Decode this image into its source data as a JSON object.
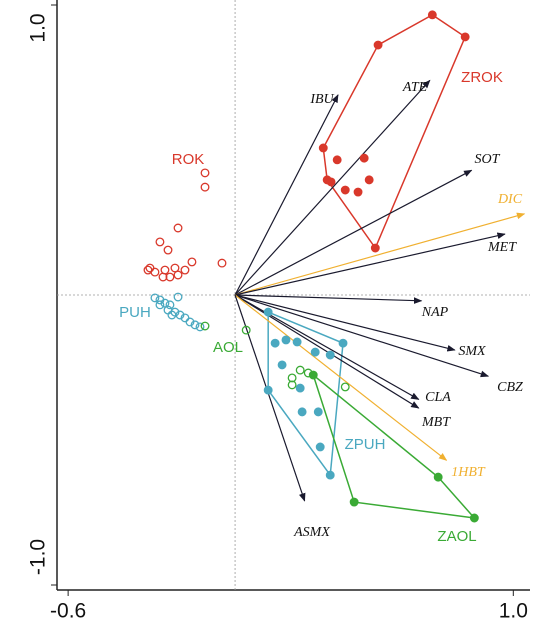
{
  "chart_data": {
    "type": "biplot",
    "xlim": [
      -0.64,
      1.06
    ],
    "ylim": [
      -1.0,
      1.0
    ],
    "xticks": [
      -0.6,
      {
        "value": 1.0,
        "label": "1.0"
      }
    ],
    "yticks": [
      {
        "value": -1.0,
        "label": "-1.0"
      },
      {
        "value": 1.0,
        "label": "1.0"
      }
    ],
    "series": [
      {
        "name": "ROK",
        "color": "#d9382b",
        "filled": false,
        "hull": false,
        "x": [
          -0.108,
          -0.108,
          -0.205,
          -0.27,
          -0.241,
          -0.155,
          -0.047,
          -0.306,
          -0.288,
          -0.252,
          -0.216,
          -0.18,
          -0.259,
          -0.234,
          -0.205,
          -0.313
        ],
        "y": [
          0.421,
          0.372,
          0.231,
          0.183,
          0.155,
          0.114,
          0.11,
          0.093,
          0.079,
          0.086,
          0.093,
          0.086,
          0.062,
          0.062,
          0.069,
          0.086
        ]
      },
      {
        "name": "ZROK",
        "color": "#d9382b",
        "filled": true,
        "hull": true,
        "x": [
          0.709,
          0.827,
          0.514,
          0.317,
          0.367,
          0.464,
          0.331,
          0.345,
          0.396,
          0.442,
          0.482,
          0.504
        ],
        "y": [
          0.966,
          0.89,
          0.862,
          0.507,
          0.466,
          0.472,
          0.397,
          0.39,
          0.362,
          0.355,
          0.397,
          0.162
        ]
      },
      {
        "name": "PUH",
        "color": "#4aa8c0",
        "filled": false,
        "hull": false,
        "x": [
          -0.288,
          -0.27,
          -0.252,
          -0.234,
          -0.205,
          -0.241,
          -0.216,
          -0.198,
          -0.18,
          -0.162,
          -0.144,
          -0.126,
          -0.27,
          -0.227
        ],
        "y": [
          -0.01,
          -0.017,
          -0.028,
          -0.034,
          -0.007,
          -0.052,
          -0.059,
          -0.069,
          -0.079,
          -0.093,
          -0.103,
          -0.11,
          -0.034,
          -0.069
        ]
      },
      {
        "name": "ZPUH",
        "color": "#4aa8c0",
        "filled": true,
        "hull": true,
        "x": [
          0.119,
          0.388,
          0.144,
          0.183,
          0.223,
          0.288,
          0.342,
          0.169,
          0.234,
          0.299,
          0.241,
          0.306,
          0.342,
          0.119
        ],
        "y": [
          -0.059,
          -0.166,
          -0.166,
          -0.155,
          -0.162,
          -0.197,
          -0.207,
          -0.241,
          -0.321,
          -0.403,
          -0.403,
          -0.524,
          -0.621,
          -0.328
        ]
      },
      {
        "name": "AOL",
        "color": "#3aaa35",
        "filled": false,
        "hull": false,
        "x": [
          -0.108,
          0.04,
          0.234,
          0.205,
          0.205,
          0.396,
          0.263
        ],
        "y": [
          -0.107,
          -0.121,
          -0.259,
          -0.286,
          -0.31,
          -0.317,
          -0.269
        ]
      },
      {
        "name": "ZAOL",
        "color": "#3aaa35",
        "filled": true,
        "hull": true,
        "x": [
          0.281,
          0.73,
          0.86,
          0.428
        ],
        "y": [
          -0.276,
          -0.628,
          -0.769,
          -0.714
        ]
      }
    ],
    "arrows": {
      "labels": [
        "IBU",
        "ATE",
        "SOT",
        "DIC",
        "MET",
        "NAP",
        "SMX",
        "CBZ",
        "CLA",
        "MBT",
        "1HBT",
        "ASMX"
      ],
      "x": [
        0.37,
        0.7,
        0.85,
        1.04,
        0.97,
        0.67,
        0.79,
        0.91,
        0.66,
        0.66,
        0.76,
        0.25
      ],
      "y": [
        0.69,
        0.74,
        0.43,
        0.28,
        0.21,
        -0.02,
        -0.19,
        -0.28,
        -0.36,
        -0.39,
        -0.57,
        -0.71
      ],
      "colors": [
        "#1a1a2e",
        "#1a1a2e",
        "#1a1a2e",
        "#f0b030",
        "#1a1a2e",
        "#1a1a2e",
        "#1a1a2e",
        "#1a1a2e",
        "#1a1a2e",
        "#1a1a2e",
        "#f0b030",
        "#1a1a2e"
      ]
    }
  }
}
